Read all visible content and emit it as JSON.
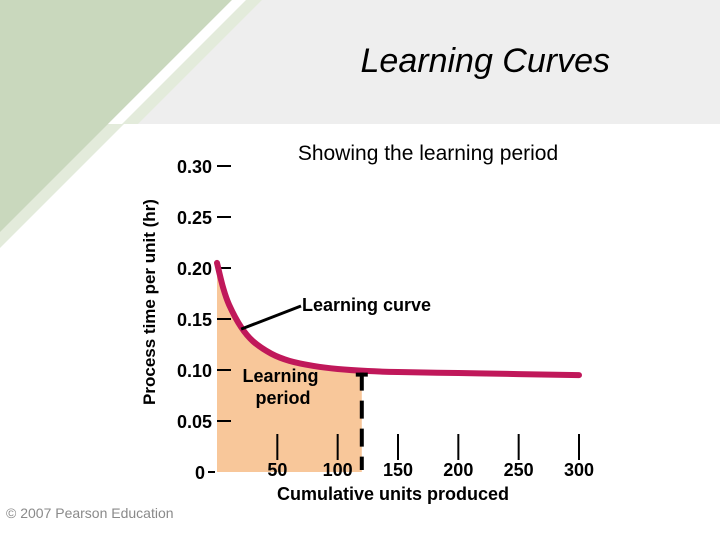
{
  "slide": {
    "title": "Learning Curves",
    "copyright": "© 2007 Pearson Education"
  },
  "colors": {
    "banner_green": "#c9d8bd",
    "banner_light": "#e3ebdb",
    "curve": "#c0185a",
    "learning_fill": "#f8c79a"
  },
  "chart_data": {
    "type": "line",
    "title": "Showing the learning period",
    "xlabel": "Cumulative units produced",
    "ylabel": "Process time per unit (hr)",
    "xlim": [
      0,
      300
    ],
    "ylim": [
      0,
      0.3
    ],
    "xticks": [
      50,
      100,
      150,
      200,
      250,
      300
    ],
    "yticks": [
      0,
      0.05,
      0.1,
      0.15,
      0.2,
      0.25,
      0.3
    ],
    "ytick_labels": [
      "0",
      "0.05",
      "0.10",
      "0.15",
      "0.20",
      "0.25",
      "0.30"
    ],
    "series": [
      {
        "x": [
          0,
          5,
          10,
          20,
          30,
          45,
          60,
          80,
          100,
          125,
          150,
          200,
          250,
          300
        ],
        "y": [
          0.205,
          0.181,
          0.164,
          0.142,
          0.128,
          0.116,
          0.109,
          0.104,
          0.101,
          0.099,
          0.098,
          0.097,
          0.096,
          0.095
        ]
      }
    ],
    "learning_period_end": 120,
    "annotations": [
      {
        "text": "Learning curve"
      },
      {
        "lines": [
          "Learning",
          "period"
        ]
      }
    ]
  }
}
